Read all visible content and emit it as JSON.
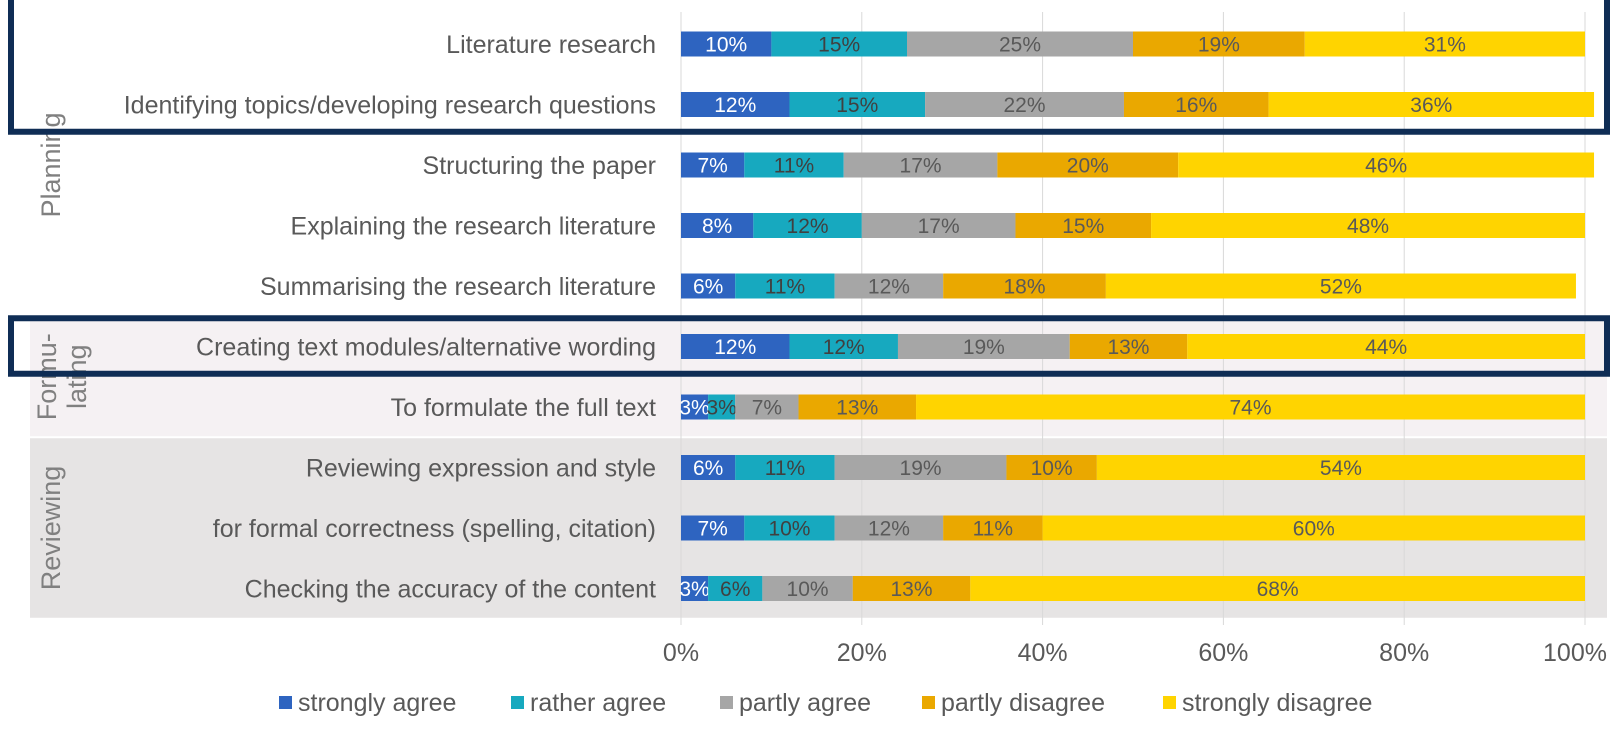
{
  "chart_data": {
    "type": "bar",
    "orientation": "horizontal",
    "stacked": "percent",
    "categories": [
      "Literature research",
      "Identifying topics/developing research questions",
      "Structuring the paper",
      "Explaining the research literature",
      "Summarising the research literature",
      "Creating text modules/alternative wording",
      "To formulate the full text",
      "Reviewing expression and style",
      "for formal correctness (spelling, citation)",
      "Checking the accuracy of the content"
    ],
    "series": [
      {
        "name": "strongly agree",
        "color": "#2e64c0",
        "values": [
          10,
          12,
          7,
          8,
          6,
          12,
          3,
          6,
          7,
          3
        ]
      },
      {
        "name": "rather agree",
        "color": "#17a9bf",
        "values": [
          15,
          15,
          11,
          12,
          11,
          12,
          3,
          11,
          10,
          6
        ]
      },
      {
        "name": "partly agree",
        "color": "#a6a6a6",
        "values": [
          25,
          22,
          17,
          17,
          12,
          19,
          7,
          19,
          12,
          10
        ]
      },
      {
        "name": "partly disagree",
        "color": "#eaa800",
        "values": [
          19,
          16,
          20,
          15,
          18,
          13,
          13,
          10,
          11,
          13
        ]
      },
      {
        "name": "strongly disagree",
        "color": "#ffd400",
        "values": [
          31,
          36,
          46,
          48,
          52,
          44,
          74,
          54,
          60,
          68
        ]
      }
    ],
    "groups": [
      {
        "label": "Planning",
        "rows": [
          0,
          4
        ],
        "shade": "none"
      },
      {
        "label": "Formu-\nlating",
        "rows": [
          5,
          6
        ],
        "shade": "#f5f1f3"
      },
      {
        "label": "Reviewing",
        "rows": [
          7,
          9
        ],
        "shade": "#e6e4e4"
      }
    ],
    "highlight_boxes": [
      [
        0,
        1
      ],
      [
        5,
        5
      ]
    ],
    "highlight_color": "#0f2d55",
    "x_ticks": [
      "0%",
      "20%",
      "40%",
      "60%",
      "80%",
      "100%"
    ],
    "xlim": [
      0,
      100
    ],
    "grid": true,
    "legend_position": "bottom",
    "value_suffix": "%"
  }
}
